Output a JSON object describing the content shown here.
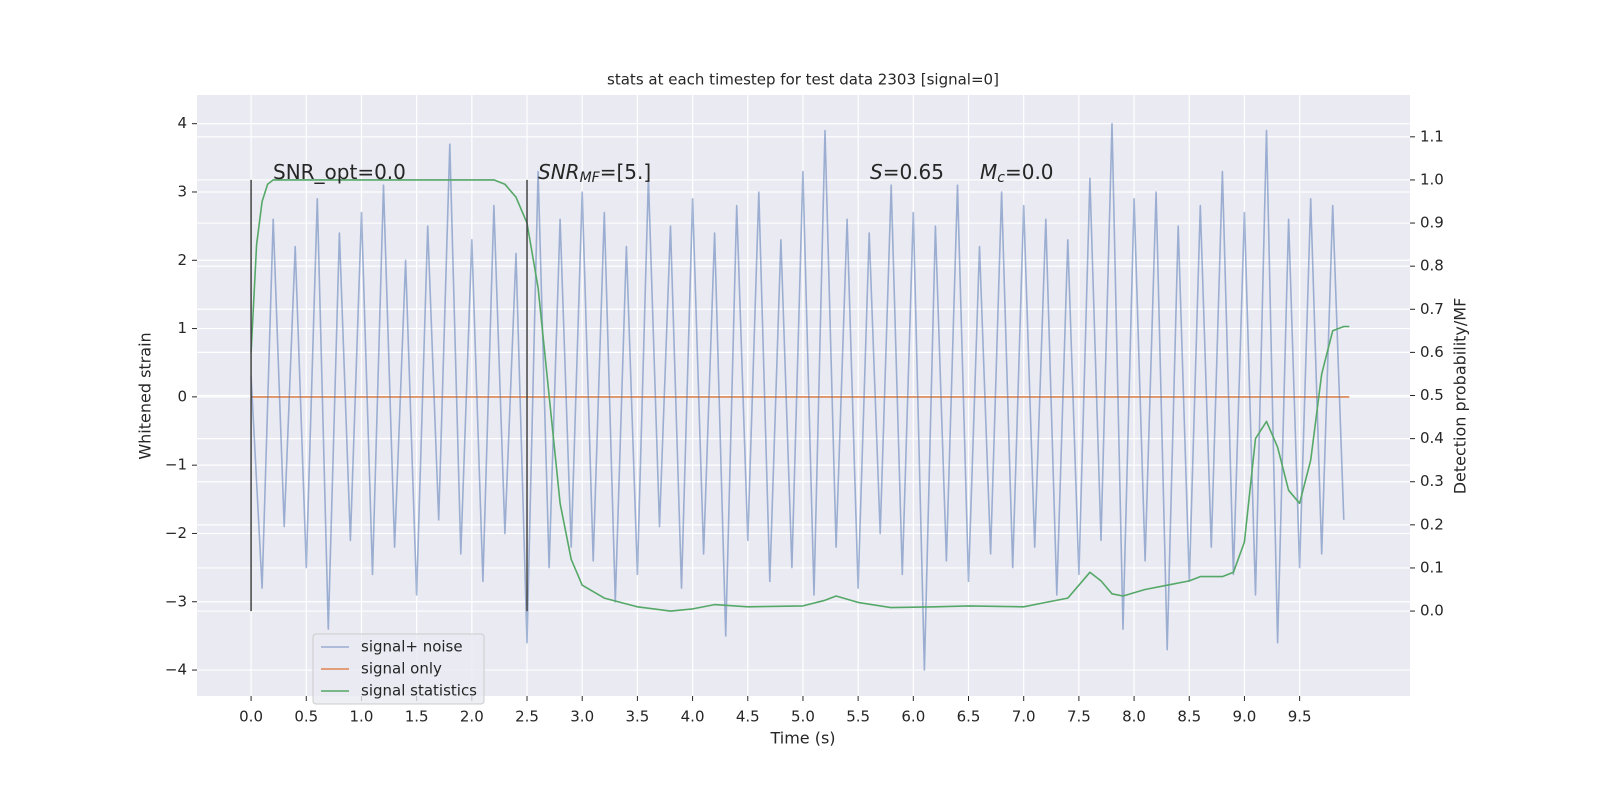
{
  "chart_data": {
    "type": "line",
    "title": "stats at each timestep for test data 2303 [signal=0]",
    "xlabel": "Time (s)",
    "ylabel": "Whitened strain",
    "y2label": "Detection probability/MF",
    "xlim": [
      -0.49,
      10.5
    ],
    "ylim": [
      -4.38,
      4.42
    ],
    "y2lim": [
      -0.197,
      1.197
    ],
    "xticks": [
      {
        "value": 0,
        "label": "0.0"
      },
      0.5,
      {
        "value": 1,
        "label": "1.0"
      },
      1.5,
      {
        "value": 2,
        "label": "2.0"
      },
      2.5,
      {
        "value": 3,
        "label": "3.0"
      },
      3.5,
      {
        "value": 4,
        "label": "4.0"
      },
      4.5,
      {
        "value": 5,
        "label": "5.0"
      },
      5.5,
      {
        "value": 6,
        "label": "6.0"
      },
      6.5,
      {
        "value": 7,
        "label": "7.0"
      },
      7.5,
      {
        "value": 8,
        "label": "8.0"
      },
      8.5,
      {
        "value": 9,
        "label": "9.0"
      },
      9.5
    ],
    "yticks": [
      {
        "value": -4,
        "label": "−4"
      },
      {
        "value": -3,
        "label": "−3"
      },
      {
        "value": -2,
        "label": "−2"
      },
      {
        "value": -1,
        "label": "−1"
      },
      0,
      1,
      2,
      3,
      4
    ],
    "y2ticks": [
      {
        "value": 0,
        "label": "0.0"
      },
      0.1,
      0.2,
      0.3,
      0.4,
      0.5,
      0.6,
      0.7,
      0.8,
      0.9,
      {
        "value": 1,
        "label": "1.0"
      },
      1.1
    ],
    "grid": true,
    "legend": "lower left",
    "series": [
      {
        "name": "signal+ noise",
        "color": "#4c72b0",
        "opacity": 0.5,
        "x": [
          0,
          0.1,
          0.2,
          0.3,
          0.4,
          0.5,
          0.6,
          0.7,
          0.8,
          0.9,
          1,
          1.1,
          1.2,
          1.3,
          1.4,
          1.5,
          1.6,
          1.7,
          1.8,
          1.9,
          2,
          2.1,
          2.2,
          2.3,
          2.4,
          2.5,
          2.6,
          2.7,
          2.8,
          2.9,
          3,
          3.1,
          3.2,
          3.3,
          3.4,
          3.5,
          3.6,
          3.7,
          3.8,
          3.9,
          4,
          4.1,
          4.2,
          4.3,
          4.4,
          4.5,
          4.6,
          4.7,
          4.8,
          4.9,
          5,
          5.1,
          5.2,
          5.3,
          5.4,
          5.5,
          5.6,
          5.7,
          5.8,
          5.9,
          6,
          6.1,
          6.2,
          6.3,
          6.4,
          6.5,
          6.6,
          6.7,
          6.8,
          6.9,
          7,
          7.1,
          7.2,
          7.3,
          7.4,
          7.5,
          7.6,
          7.7,
          7.8,
          7.9,
          8,
          8.1,
          8.2,
          8.3,
          8.4,
          8.5,
          8.6,
          8.7,
          8.8,
          8.9,
          9,
          9.1,
          9.2,
          9.3,
          9.4,
          9.5,
          9.6,
          9.7,
          9.8,
          9.9
        ],
        "values": [
          0.3,
          -2.8,
          2.6,
          -1.9,
          2.2,
          -2.5,
          2.9,
          -3.4,
          2.4,
          -2.1,
          2.7,
          -2.6,
          3.1,
          -2.2,
          2.0,
          -2.9,
          2.5,
          -1.8,
          3.7,
          -2.3,
          2.3,
          -2.7,
          2.8,
          -2.0,
          2.1,
          -3.6,
          3.3,
          -2.5,
          2.6,
          -2.2,
          3.0,
          -2.4,
          2.7,
          -3.0,
          2.2,
          -2.6,
          3.2,
          -1.9,
          2.5,
          -2.8,
          2.9,
          -2.3,
          2.4,
          -3.5,
          2.8,
          -2.1,
          3.0,
          -2.7,
          2.3,
          -2.5,
          3.3,
          -2.9,
          3.9,
          -2.2,
          2.6,
          -2.8,
          2.4,
          -2.0,
          3.1,
          -2.6,
          2.7,
          -4.0,
          2.5,
          -2.4,
          3.1,
          -2.7,
          2.2,
          -2.3,
          3.0,
          -2.5,
          2.8,
          -2.2,
          2.6,
          -2.9,
          2.3,
          -2.6,
          3.2,
          -2.1,
          4.0,
          -3.4,
          2.9,
          -2.4,
          3.0,
          -3.7,
          2.5,
          -2.7,
          2.8,
          -2.2,
          3.3,
          -2.6,
          2.7,
          -2.9,
          3.9,
          -3.6,
          2.6,
          -2.5,
          2.9,
          -2.3,
          2.8,
          -1.8
        ]
      },
      {
        "name": "signal only",
        "color": "#dd8452",
        "x": [
          0,
          9.95
        ],
        "values": [
          0,
          0
        ]
      },
      {
        "name": "signal statistics",
        "color": "#55a868",
        "axis": "y2",
        "x": [
          0,
          0.05,
          0.1,
          0.15,
          0.2,
          0.5,
          1,
          1.5,
          2,
          2.2,
          2.3,
          2.4,
          2.5,
          2.6,
          2.7,
          2.8,
          2.9,
          3,
          3.2,
          3.5,
          3.8,
          4,
          4.2,
          4.5,
          5,
          5.2,
          5.3,
          5.5,
          5.8,
          6.2,
          6.5,
          7,
          7.2,
          7.4,
          7.5,
          7.6,
          7.7,
          7.8,
          7.9,
          8.1,
          8.3,
          8.5,
          8.6,
          8.8,
          8.9,
          9,
          9.1,
          9.2,
          9.3,
          9.4,
          9.5,
          9.6,
          9.7,
          9.8,
          9.9,
          9.95
        ],
        "values": [
          0.6,
          0.85,
          0.95,
          0.99,
          1.0,
          1.0,
          1.0,
          1.0,
          1.0,
          1.0,
          0.99,
          0.96,
          0.9,
          0.75,
          0.5,
          0.25,
          0.12,
          0.06,
          0.03,
          0.01,
          0.0,
          0.005,
          0.015,
          0.01,
          0.012,
          0.025,
          0.035,
          0.02,
          0.008,
          0.01,
          0.012,
          0.01,
          0.02,
          0.03,
          0.06,
          0.09,
          0.07,
          0.04,
          0.035,
          0.05,
          0.06,
          0.07,
          0.08,
          0.08,
          0.09,
          0.16,
          0.4,
          0.44,
          0.38,
          0.28,
          0.25,
          0.35,
          0.55,
          0.65,
          0.66,
          0.66
        ]
      }
    ],
    "vlines": [
      0,
      2.5
    ],
    "vline_range": [
      0,
      1
    ],
    "annotations": [
      {
        "text": "SNR_opt=0.0"
      },
      {
        "text": "SNR",
        "sub": "MF",
        "tail": "=[5.]"
      },
      {
        "text": "S",
        "tail": "=0.65"
      },
      {
        "text": "M",
        "sub": "c",
        "tail": "=0.0"
      }
    ]
  }
}
